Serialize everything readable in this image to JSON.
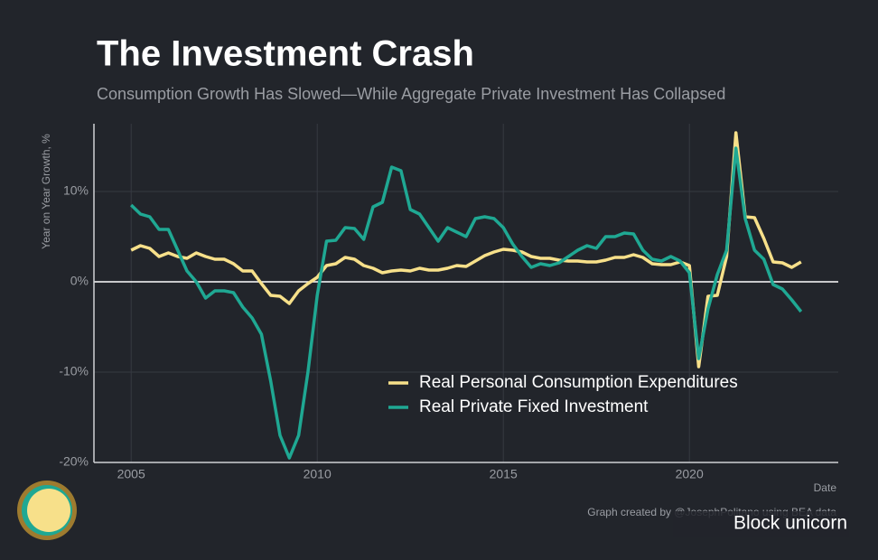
{
  "chart_data": {
    "type": "line",
    "title": "The Investment Crash",
    "subtitle": "Consumption Growth Has Slowed—While Aggregate Private Investment Has Collapsed",
    "x_label": "Date",
    "y_label": "Year on Year Growth, %",
    "caption": "Graph created by @JosephPolitano using BEA data",
    "watermark": "Block unicorn",
    "x": [
      2005,
      2005.25,
      2005.5,
      2005.75,
      2006,
      2006.25,
      2006.5,
      2006.75,
      2007,
      2007.25,
      2007.5,
      2007.75,
      2008,
      2008.25,
      2008.5,
      2008.75,
      2009,
      2009.25,
      2009.5,
      2009.75,
      2010,
      2010.25,
      2010.5,
      2010.75,
      2011,
      2011.25,
      2011.5,
      2011.75,
      2012,
      2012.25,
      2012.5,
      2012.75,
      2013,
      2013.25,
      2013.5,
      2013.75,
      2014,
      2014.25,
      2014.5,
      2014.75,
      2015,
      2015.25,
      2015.5,
      2015.75,
      2016,
      2016.25,
      2016.5,
      2016.75,
      2017,
      2017.25,
      2017.5,
      2017.75,
      2018,
      2018.25,
      2018.5,
      2018.75,
      2019,
      2019.25,
      2019.5,
      2019.75,
      2020,
      2020.25,
      2020.5,
      2020.75,
      2021,
      2021.25,
      2021.5,
      2021.75,
      2022,
      2022.25,
      2022.5,
      2022.75,
      2023
    ],
    "series": [
      {
        "name": "Real Personal Consumption Expenditures",
        "color": "#f7e08a",
        "values": [
          3.5,
          4.0,
          3.7,
          2.8,
          3.2,
          2.8,
          2.6,
          3.2,
          2.8,
          2.5,
          2.5,
          2.0,
          1.2,
          1.2,
          -0.2,
          -1.5,
          -1.6,
          -2.4,
          -1.0,
          -0.2,
          0.5,
          1.8,
          2.0,
          2.7,
          2.5,
          1.8,
          1.5,
          1.0,
          1.2,
          1.3,
          1.2,
          1.5,
          1.3,
          1.3,
          1.5,
          1.8,
          1.7,
          2.3,
          2.9,
          3.3,
          3.6,
          3.5,
          3.3,
          2.8,
          2.6,
          2.6,
          2.4,
          2.3,
          2.3,
          2.2,
          2.2,
          2.4,
          2.7,
          2.7,
          3.0,
          2.7,
          2.0,
          1.9,
          1.9,
          2.2,
          1.8,
          -9.4,
          -1.6,
          -1.5,
          2.8,
          16.5,
          7.2,
          7.1,
          4.8,
          2.2,
          2.1,
          1.6,
          2.2
        ]
      },
      {
        "name": "Real Private Fixed Investment",
        "color": "#1fa893",
        "values": [
          8.5,
          7.5,
          7.2,
          5.8,
          5.8,
          3.5,
          1.2,
          0.0,
          -1.8,
          -1.0,
          -1.0,
          -1.2,
          -2.8,
          -4.0,
          -5.8,
          -11,
          -17,
          -19.5,
          -17,
          -10,
          -1.5,
          4.5,
          4.6,
          6.0,
          5.9,
          4.7,
          8.3,
          8.8,
          12.7,
          12.3,
          8.0,
          7.5,
          6.0,
          4.5,
          6.0,
          5.5,
          5.0,
          7.0,
          7.2,
          7.0,
          6.0,
          4.2,
          2.8,
          1.6,
          2.0,
          1.8,
          2.1,
          2.8,
          3.5,
          4.0,
          3.7,
          5.0,
          5.0,
          5.4,
          5.3,
          3.5,
          2.5,
          2.3,
          2.8,
          2.3,
          1.0,
          -8.5,
          -3.0,
          0.8,
          3.5,
          14.8,
          7.0,
          3.5,
          2.5,
          -0.3,
          -0.8,
          -2.0,
          -3.3
        ]
      }
    ],
    "xlim": [
      2004,
      2024
    ],
    "ylim": [
      -20,
      17.5
    ],
    "xticks": [
      2005,
      2010,
      2015,
      2020
    ],
    "yticks": [
      {
        "value": -20,
        "label": "-20%"
      },
      {
        "value": -10,
        "label": "-10%"
      },
      {
        "value": 0,
        "label": "0%"
      },
      {
        "value": 10,
        "label": "10%"
      }
    ],
    "grid": true
  }
}
